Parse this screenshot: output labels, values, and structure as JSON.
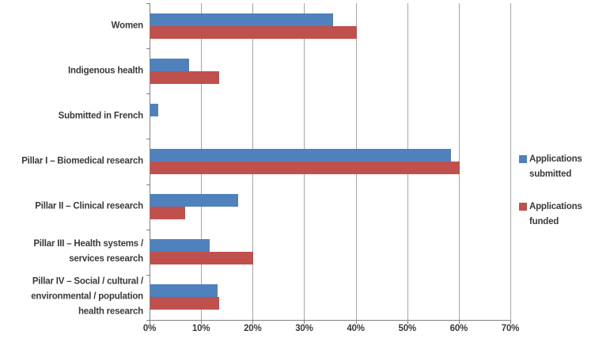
{
  "chart_data": {
    "type": "bar",
    "orientation": "horizontal",
    "title": "",
    "categories": [
      "Women",
      "Indigenous health",
      "Submitted in French",
      "Pillar I – Biomedical research",
      "Pillar II – Clinical research",
      "Pillar III – Health systems /\nservices research",
      "Pillar IV – Social / cultural /\nenvironmental / population\nhealth research"
    ],
    "series": [
      {
        "name": "Applications submitted",
        "color": "#4F81BD",
        "values": [
          35.5,
          7.5,
          1.5,
          58.3,
          17,
          11.5,
          13
        ]
      },
      {
        "name": "Applications funded",
        "color": "#C0504D",
        "values": [
          40,
          13.3,
          0,
          60,
          6.7,
          20,
          13.4
        ]
      }
    ],
    "x_axis": {
      "min": 0,
      "max": 70,
      "tick_step": 10,
      "tick_labels": [
        "0%",
        "10%",
        "20%",
        "30%",
        "40%",
        "50%",
        "60%",
        "70%"
      ],
      "format": "percent"
    },
    "gridlines": true,
    "legend_position": "right",
    "colors": {
      "gridline": "#A6A6A6",
      "axis": "#808080",
      "text": "#3A3A3A",
      "background": "#FFFFFF"
    }
  }
}
